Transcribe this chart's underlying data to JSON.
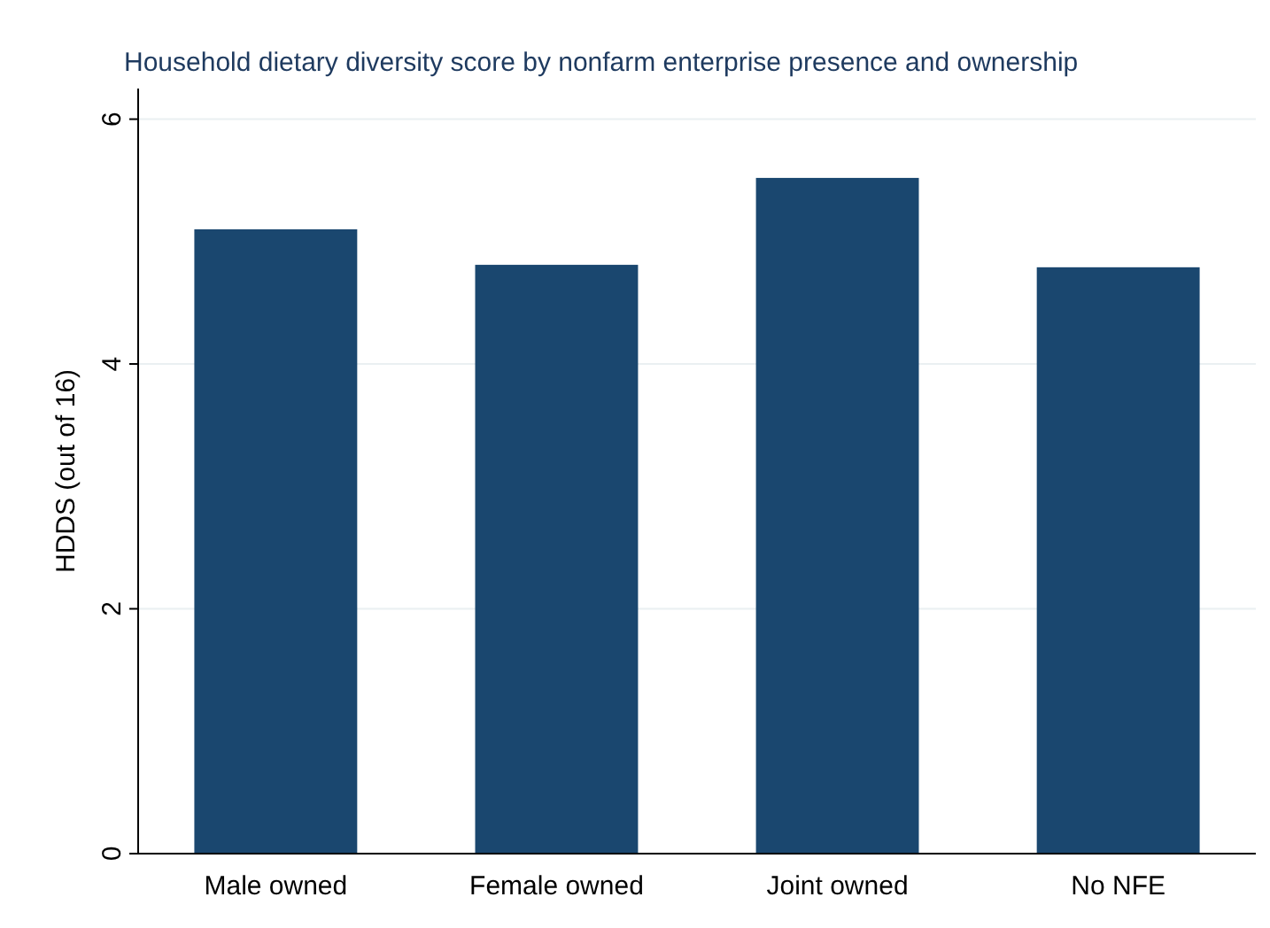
{
  "chart_data": {
    "type": "bar",
    "title": "Household dietary diversity score by nonfarm enterprise presence and ownership",
    "ylabel": "HDDS (out of 16)",
    "categories": [
      "Male owned",
      "Female owned",
      "Joint owned",
      "No NFE"
    ],
    "values": [
      5.1,
      4.81,
      5.52,
      4.79
    ],
    "color": "#1a476f",
    "ylim": [
      0,
      6.25
    ],
    "yticks": [
      0,
      2,
      4,
      6
    ],
    "grid": "y"
  }
}
